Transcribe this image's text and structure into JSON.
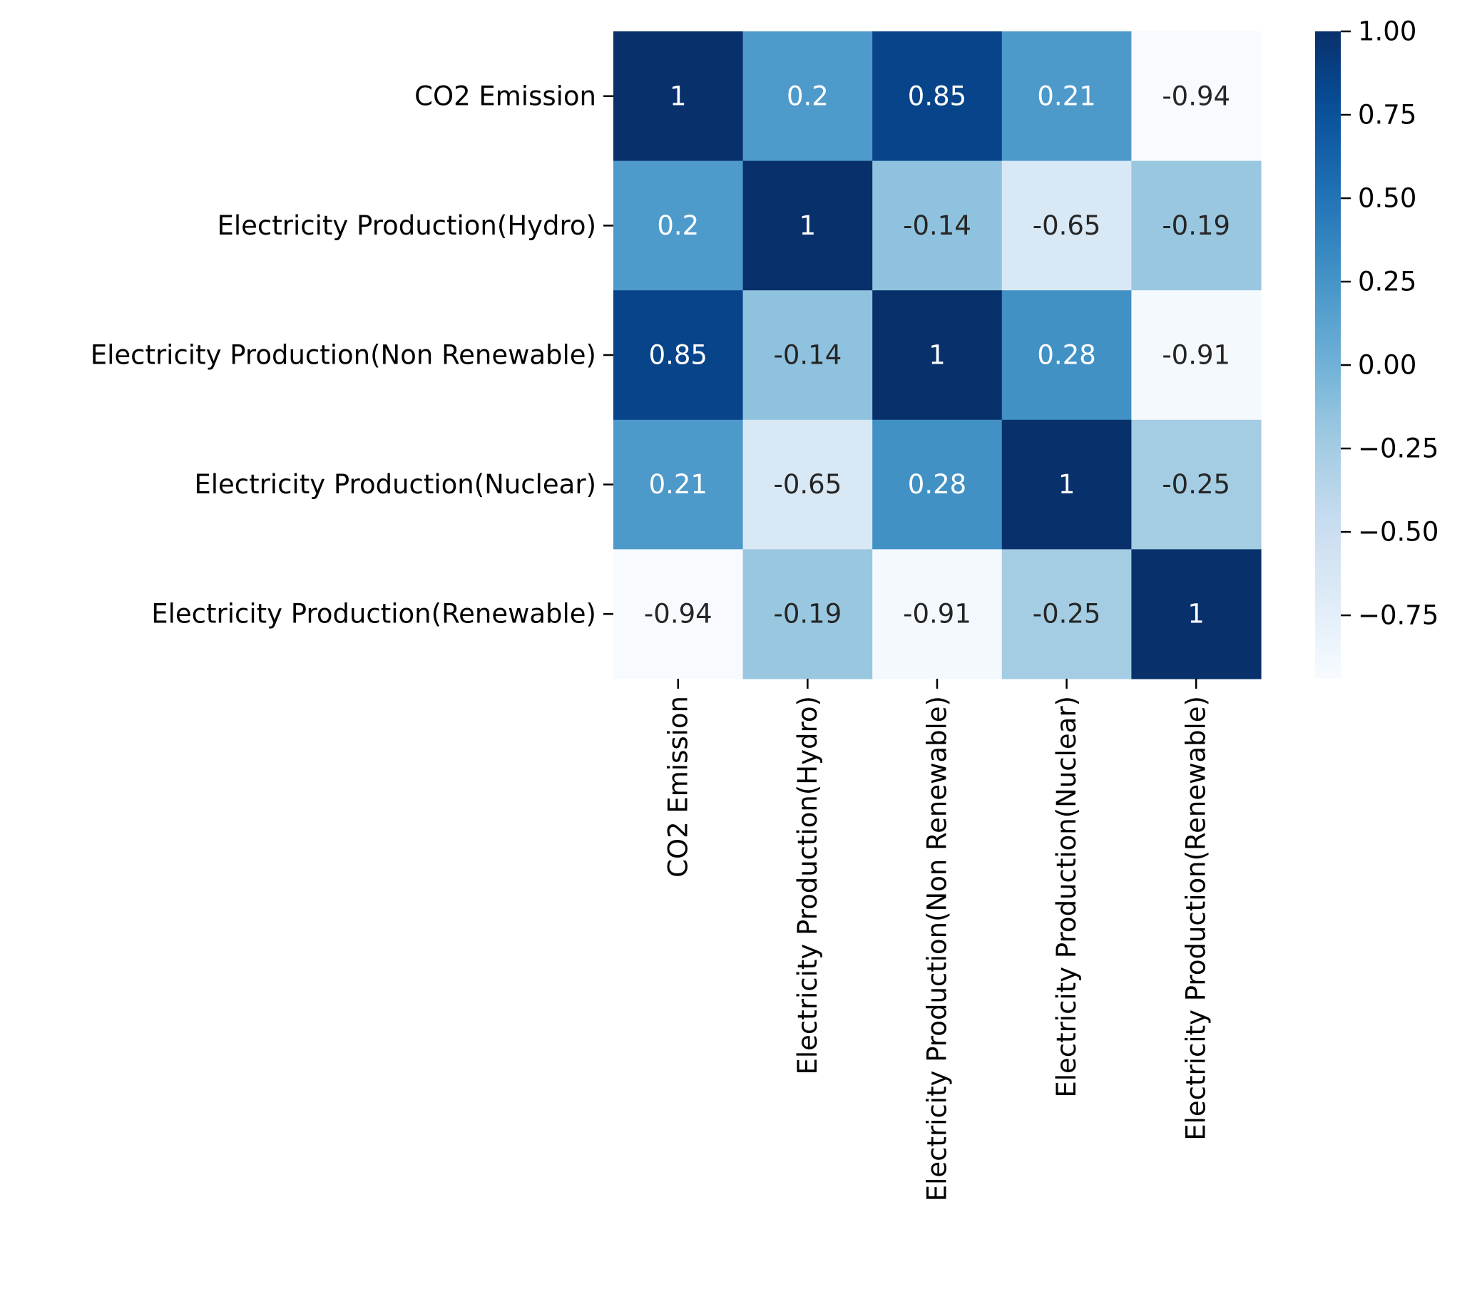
{
  "chart_data": {
    "type": "heatmap",
    "title": "",
    "xlabel": "",
    "ylabel": "",
    "rows": [
      "CO2 Emission",
      "Electricity Production(Hydro)",
      "Electricity Production(Non Renewable)",
      "Electricity Production(Nuclear)",
      "Electricity Production(Renewable)"
    ],
    "columns": [
      "CO2 Emission",
      "Electricity Production(Hydro)",
      "Electricity Production(Non Renewable)",
      "Electricity Production(Nuclear)",
      "Electricity Production(Renewable)"
    ],
    "values": [
      [
        1,
        0.2,
        0.85,
        0.21,
        -0.94
      ],
      [
        0.2,
        1,
        -0.14,
        -0.65,
        -0.19
      ],
      [
        0.85,
        -0.14,
        1,
        0.28,
        -0.91
      ],
      [
        0.21,
        -0.65,
        0.28,
        1,
        -0.25
      ],
      [
        -0.94,
        -0.19,
        -0.91,
        -0.25,
        1
      ]
    ],
    "cell_labels": [
      [
        "1",
        "0.2",
        "0.85",
        "0.21",
        "-0.94"
      ],
      [
        "0.2",
        "1",
        "-0.14",
        "-0.65",
        "-0.19"
      ],
      [
        "0.85",
        "-0.14",
        "1",
        "0.28",
        "-0.91"
      ],
      [
        "0.21",
        "-0.65",
        "0.28",
        "1",
        "-0.25"
      ],
      [
        "-0.94",
        "-0.19",
        "-0.91",
        "-0.25",
        "1"
      ]
    ],
    "colormap": "Blues",
    "color_range": [
      -0.94,
      1
    ],
    "colorbar": {
      "ticks": [
        1.0,
        0.75,
        0.5,
        0.25,
        0.0,
        -0.25,
        -0.5,
        -0.75
      ],
      "tick_labels": [
        "1.00",
        "0.75",
        "0.50",
        "0.25",
        "0.00",
        "−0.25",
        "−0.50",
        "−0.75"
      ]
    },
    "colors": {
      "text_dark": "#262626",
      "text_light": "#ffffff"
    }
  }
}
